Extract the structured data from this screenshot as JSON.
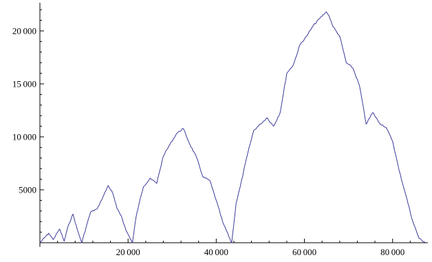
{
  "chart_data": {
    "type": "line",
    "title": "",
    "xlabel": "",
    "ylabel": "",
    "xlim": [
      0,
      88000
    ],
    "ylim": [
      0,
      22400
    ],
    "x_ticks": [
      20000,
      40000,
      60000,
      80000
    ],
    "x_tick_labels": [
      "20 000",
      "40 000",
      "60 000",
      "80 000"
    ],
    "y_ticks": [
      5000,
      10000,
      15000,
      20000
    ],
    "y_tick_labels": [
      "5000",
      "10 000",
      "15 000",
      "20 000"
    ],
    "grid": false,
    "line_color": "#3b3b9a",
    "series": [
      {
        "x": [
          0,
          2000,
          3000,
          4500,
          5500,
          6500,
          7500,
          8500,
          9500,
          10500,
          11500,
          13000,
          14500,
          15500,
          16500,
          17500,
          18500,
          19500,
          21000,
          21800,
          22500,
          23500,
          25000,
          26500,
          28000,
          29500,
          31000,
          32500,
          34000,
          35500,
          37000,
          38500,
          40000,
          41500,
          43500,
          44500,
          45500,
          47000,
          48500,
          50000,
          51500,
          53000,
          54500,
          56000,
          57500,
          59000,
          60500,
          62000,
          63500,
          65000,
          65500,
          66500,
          68000,
          69500,
          71000,
          72500,
          74000,
          75500,
          77000,
          78500,
          80000,
          81500,
          83000,
          84500,
          86000,
          87500
        ],
        "y": [
          0,
          900,
          300,
          1300,
          150,
          1700,
          2700,
          1200,
          0,
          1500,
          2900,
          3200,
          4500,
          5400,
          4700,
          3200,
          2500,
          1200,
          0,
          2400,
          3700,
          5300,
          6100,
          5600,
          8200,
          9300,
          10300,
          10800,
          9300,
          8100,
          6200,
          5900,
          4000,
          1900,
          0,
          3700,
          5400,
          8200,
          10600,
          11200,
          11800,
          11000,
          12300,
          16000,
          16800,
          18700,
          19500,
          20500,
          21200,
          21800,
          21500,
          20400,
          19500,
          17000,
          16500,
          14800,
          11200,
          12300,
          11300,
          10900,
          9600,
          6800,
          4500,
          2100,
          400,
          0
        ]
      }
    ]
  }
}
